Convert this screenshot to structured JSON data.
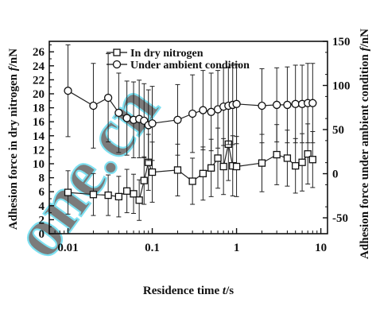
{
  "chart_data": {
    "type": "line",
    "x_scale": "log",
    "xlim": [
      0.006,
      12
    ],
    "xlabel_parts": {
      "pre": "Residence time ",
      "var": "t",
      "post": "/s"
    },
    "x_ticks": [
      {
        "value": 0.01,
        "label": "0.01"
      },
      {
        "value": 0.1,
        "label": "0.1"
      },
      {
        "value": 1,
        "label": "1"
      },
      {
        "value": 10,
        "label": "10"
      }
    ],
    "y_left": {
      "label_parts": {
        "pre": "Adhesion force in dry nitrogen ",
        "var": "f",
        "post": "/nN"
      },
      "lim": [
        0,
        27.5
      ],
      "ticks": [
        0,
        2,
        4,
        6,
        8,
        10,
        12,
        14,
        16,
        18,
        20,
        22,
        24,
        26
      ]
    },
    "y_right": {
      "label_parts": {
        "pre": "Adhesion force under ambient condition ",
        "var": "f",
        "post": "/nN"
      },
      "lim": [
        -68,
        150
      ],
      "ticks": [
        -50,
        0,
        50,
        100,
        150
      ]
    },
    "series": [
      {
        "name": "In dry nitrogen",
        "axis": "left",
        "marker": "square",
        "x": [
          0.01,
          0.02,
          0.03,
          0.04,
          0.05,
          0.06,
          0.07,
          0.08,
          0.09,
          0.1,
          0.2,
          0.3,
          0.4,
          0.5,
          0.6,
          0.7,
          0.8,
          0.9,
          1,
          2,
          3,
          4,
          5,
          6,
          7,
          8
        ],
        "y": [
          5.9,
          5.6,
          5.5,
          5.3,
          6.1,
          5.7,
          4.8,
          7.6,
          10.2,
          8.8,
          9.1,
          7.5,
          8.6,
          9.4,
          10.8,
          9.6,
          12.8,
          9.7,
          9.6,
          10.1,
          11.3,
          10.8,
          9.7,
          10.2,
          11.4,
          10.6
        ],
        "err": [
          3.1,
          3.0,
          2.9,
          2.9,
          3.1,
          2.8,
          2.9,
          3.4,
          4.0,
          4.3,
          3.7,
          3.3,
          3.8,
          4.1,
          4.3,
          4.0,
          5.2,
          4.3,
          4.3,
          4.1,
          4.3,
          4.0,
          3.9,
          4.1,
          4.3,
          4.0
        ]
      },
      {
        "name": "Under ambient condition",
        "axis": "right",
        "marker": "circle",
        "x": [
          0.01,
          0.02,
          0.03,
          0.04,
          0.05,
          0.06,
          0.07,
          0.08,
          0.09,
          0.1,
          0.2,
          0.3,
          0.4,
          0.5,
          0.6,
          0.7,
          0.8,
          0.9,
          1,
          2,
          3,
          4,
          5,
          6,
          7,
          8
        ],
        "y": [
          94,
          77,
          86,
          69,
          63,
          61,
          62,
          60,
          55,
          57,
          61,
          68,
          72,
          70,
          73,
          76,
          77,
          78,
          79,
          77,
          78,
          78,
          79,
          79,
          80,
          80
        ],
        "err": [
          52,
          48,
          50,
          45,
          42,
          43,
          44,
          42,
          40,
          42,
          40,
          44,
          45,
          44,
          44,
          44,
          44,
          45,
          45,
          42,
          42,
          43,
          44,
          44,
          45,
          45
        ]
      }
    ],
    "legend_position": "top-left",
    "watermark": "one.cn"
  }
}
